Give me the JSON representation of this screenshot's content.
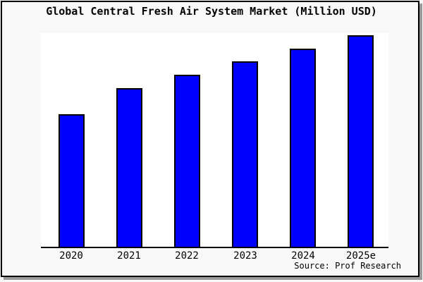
{
  "title": "Global Central Fresh Air System Market (Million USD)",
  "source_label": "Source: Prof Research",
  "chart_data": {
    "type": "bar",
    "title": "Global Central Fresh Air System Market (Million USD)",
    "categories": [
      "2020",
      "2021",
      "2022",
      "2023",
      "2024",
      "2025e"
    ],
    "values": [
      62.5,
      75,
      81.25,
      87.5,
      93.75,
      100
    ],
    "value_units": "relative height, percent of tallest (2025e) bar; chart shows no numeric y-axis scale",
    "xlabel": "",
    "ylabel": "",
    "ylim": [
      0,
      100
    ],
    "grid": false,
    "legend": false,
    "y_axis_visible": false,
    "source": "Source: Prof Research",
    "bar_color": "#0000fe",
    "bar_border_color": "#000000",
    "plot_background": "#ffffff",
    "figure_background": "#f8f8f8",
    "frame_border_color": "#000000",
    "frame_shadow_color": "#9a9a9a"
  }
}
